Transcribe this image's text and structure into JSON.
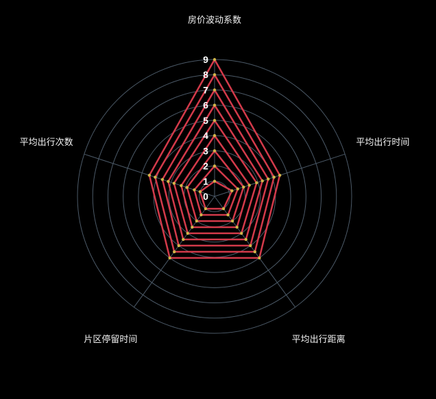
{
  "chart_data": {
    "type": "radar",
    "indicators": [
      {
        "name": "房价波动系数"
      },
      {
        "name": "平均出行时间"
      },
      {
        "name": "平均出行距离"
      },
      {
        "name": "片区停留时间"
      },
      {
        "name": "平均出行次数"
      }
    ],
    "rlim": [
      0,
      9
    ],
    "radial_ticks": [
      0,
      1,
      2,
      3,
      4,
      5,
      6,
      7,
      8,
      9
    ],
    "grid": true,
    "series": [
      {
        "values": [
          1,
          1.2,
          1.0,
          1.0,
          1.0
        ]
      },
      {
        "values": [
          2,
          1.6,
          1.5,
          1.5,
          1.4
        ]
      },
      {
        "values": [
          3,
          2.0,
          2.0,
          2.0,
          1.9
        ]
      },
      {
        "values": [
          4,
          2.4,
          2.5,
          2.5,
          2.3
        ]
      },
      {
        "values": [
          5,
          2.9,
          3.0,
          3.0,
          2.8
        ]
      },
      {
        "values": [
          6,
          3.3,
          3.5,
          3.5,
          3.2
        ]
      },
      {
        "values": [
          7,
          3.7,
          4.0,
          4.0,
          3.6
        ]
      },
      {
        "values": [
          8,
          4.1,
          4.5,
          4.5,
          4.1
        ]
      },
      {
        "values": [
          9,
          4.5,
          5.0,
          5.0,
          4.5
        ]
      }
    ],
    "colors": {
      "background": "#000000",
      "series_line": "#d33a4a",
      "series_point": "#d2b448",
      "grid": "#4c5a68",
      "text": "#ffffff"
    }
  }
}
